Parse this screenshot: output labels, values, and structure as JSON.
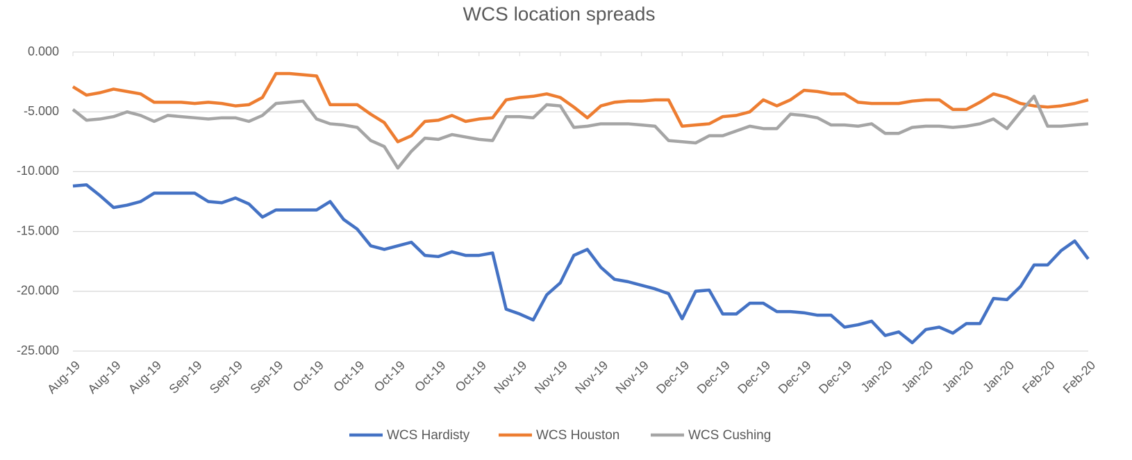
{
  "chart_data": {
    "type": "line",
    "title": "WCS location spreads",
    "categories": [
      "Aug-19",
      null,
      null,
      "Aug-19",
      null,
      null,
      "Aug-19",
      null,
      null,
      "Sep-19",
      null,
      null,
      "Sep-19",
      null,
      null,
      "Sep-19",
      null,
      null,
      "Oct-19",
      null,
      null,
      "Oct-19",
      null,
      null,
      "Oct-19",
      null,
      null,
      "Oct-19",
      null,
      null,
      "Oct-19",
      null,
      null,
      "Nov-19",
      null,
      null,
      "Nov-19",
      null,
      null,
      "Nov-19",
      null,
      null,
      "Nov-19",
      null,
      null,
      "Dec-19",
      null,
      null,
      "Dec-19",
      null,
      null,
      "Dec-19",
      null,
      null,
      "Dec-19",
      null,
      null,
      "Dec-19",
      null,
      null,
      "Jan-20",
      null,
      null,
      "Jan-20",
      null,
      null,
      "Jan-20",
      null,
      null,
      "Jan-20",
      null,
      null,
      "Feb-20",
      null,
      null,
      "Feb-20"
    ],
    "series": [
      {
        "name": "WCS Hardisty",
        "color": "#4472c4",
        "values": [
          -11.2,
          -11.1,
          -12,
          -13,
          -12.8,
          -12.5,
          -11.8,
          -11.8,
          -11.8,
          -11.8,
          -12.5,
          -12.6,
          -12.2,
          -12.7,
          -13.8,
          -13.2,
          -13.2,
          -13.2,
          -13.2,
          -12.5,
          -14,
          -14.8,
          -16.2,
          -16.5,
          -16.2,
          -15.9,
          -17,
          -17.1,
          -16.7,
          -17,
          -17,
          -16.8,
          -21.5,
          -21.9,
          -22.4,
          -20.3,
          -19.3,
          -17,
          -16.5,
          -18,
          -19,
          -19.2,
          -19.5,
          -19.8,
          -20.2,
          -22.3,
          -20,
          -19.9,
          -21.9,
          -21.9,
          -21,
          -21,
          -21.7,
          -21.7,
          -21.8,
          -22,
          -22,
          -23,
          -22.8,
          -22.5,
          -23.7,
          -23.4,
          -24.3,
          -23.2,
          -23,
          -23.5,
          -22.7,
          -22.7,
          -20.6,
          -20.7,
          -19.6,
          -17.8,
          -17.8,
          -16.6,
          -15.8,
          -17.3
        ]
      },
      {
        "name": "WCS Houston",
        "color": "#ed7d31",
        "values": [
          -2.9,
          -3.6,
          -3.4,
          -3.1,
          -3.3,
          -3.5,
          -4.2,
          -4.2,
          -4.2,
          -4.3,
          -4.2,
          -4.3,
          -4.5,
          -4.4,
          -3.8,
          -1.8,
          -1.8,
          -1.9,
          -2,
          -4.4,
          -4.4,
          -4.4,
          -5.2,
          -5.9,
          -7.5,
          -7,
          -5.8,
          -5.7,
          -5.3,
          -5.8,
          -5.6,
          -5.5,
          -4,
          -3.8,
          -3.7,
          -3.5,
          -3.8,
          -4.6,
          -5.5,
          -4.5,
          -4.2,
          -4.1,
          -4.1,
          -4,
          -4,
          -6.2,
          -6.1,
          -6,
          -5.4,
          -5.3,
          -5,
          -4,
          -4.5,
          -4,
          -3.2,
          -3.3,
          -3.5,
          -3.5,
          -4.2,
          -4.3,
          -4.3,
          -4.3,
          -4.1,
          -4,
          -4,
          -4.8,
          -4.8,
          -4.2,
          -3.5,
          -3.8,
          -4.3,
          -4.5,
          -4.6,
          -4.5,
          -4.3,
          -4
        ]
      },
      {
        "name": "WCS Cushing",
        "color": "#a5a5a5",
        "values": [
          -4.8,
          -5.7,
          -5.6,
          -5.4,
          -5,
          -5.3,
          -5.8,
          -5.3,
          -5.4,
          -5.5,
          -5.6,
          -5.5,
          -5.5,
          -5.8,
          -5.3,
          -4.3,
          -4.2,
          -4.1,
          -5.6,
          -6,
          -6.1,
          -6.3,
          -7.4,
          -7.9,
          -9.7,
          -8.3,
          -7.2,
          -7.3,
          -6.9,
          -7.1,
          -7.3,
          -7.4,
          -5.4,
          -5.4,
          -5.5,
          -4.4,
          -4.5,
          -6.3,
          -6.2,
          -6,
          -6,
          -6,
          -6.1,
          -6.2,
          -7.4,
          -7.5,
          -7.6,
          -7,
          -7,
          -6.6,
          -6.2,
          -6.4,
          -6.4,
          -5.2,
          -5.3,
          -5.5,
          -6.1,
          -6.1,
          -6.2,
          -6,
          -6.8,
          -6.8,
          -6.3,
          -6.2,
          -6.2,
          -6.3,
          -6.2,
          -6,
          -5.6,
          -6.4,
          -5,
          -3.7,
          -6.2,
          -6.2,
          -6.1,
          -6
        ]
      }
    ],
    "ylim": [
      -25,
      0
    ],
    "yticks": [
      {
        "value": -25,
        "label": "-25.000"
      },
      {
        "value": -20,
        "label": "-20.000"
      },
      {
        "value": -15,
        "label": "-15.000"
      },
      {
        "value": -10,
        "label": "-10.000"
      },
      {
        "value": -5,
        "label": "-5.000"
      },
      {
        "value": 0,
        "label": "0.000"
      }
    ],
    "grid": true,
    "legend": "bottom"
  }
}
